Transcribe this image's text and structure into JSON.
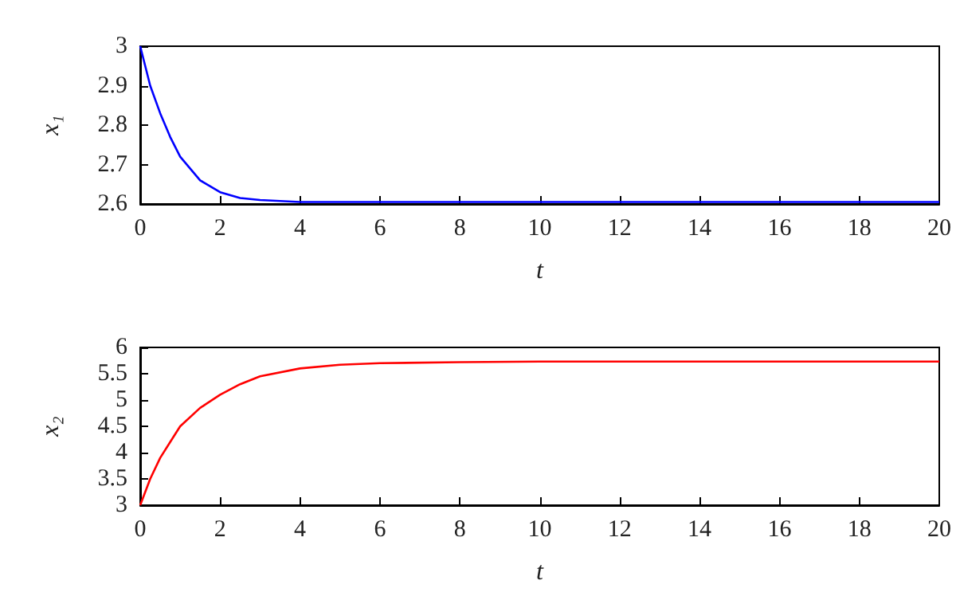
{
  "chart_data": [
    {
      "type": "line",
      "xlabel": "t",
      "ylabel": "x₁",
      "x": [
        0,
        0.25,
        0.5,
        0.75,
        1,
        1.5,
        2,
        2.5,
        3,
        4,
        5,
        6,
        8,
        10,
        12,
        14,
        16,
        18,
        20
      ],
      "series": [
        {
          "color": "#0000ff",
          "values": [
            3.0,
            2.9,
            2.83,
            2.77,
            2.72,
            2.66,
            2.63,
            2.615,
            2.61,
            2.605,
            2.605,
            2.605,
            2.605,
            2.605,
            2.605,
            2.605,
            2.605,
            2.605,
            2.605
          ]
        }
      ],
      "xlim": [
        0,
        20
      ],
      "xticks": [
        0,
        2,
        4,
        6,
        8,
        10,
        12,
        14,
        16,
        18,
        20
      ],
      "ylim": [
        2.6,
        3
      ],
      "yticks": [
        2.6,
        2.7,
        2.8,
        2.9,
        3
      ],
      "grid": false,
      "marker": "none",
      "line_style": "solid"
    },
    {
      "type": "line",
      "xlabel": "t",
      "ylabel": "x₂",
      "x": [
        0,
        0.25,
        0.5,
        0.75,
        1,
        1.5,
        2,
        2.5,
        3,
        4,
        5,
        6,
        8,
        10,
        12,
        14,
        16,
        18,
        20
      ],
      "series": [
        {
          "color": "#ff0000",
          "values": [
            3.0,
            3.5,
            3.9,
            4.2,
            4.5,
            4.85,
            5.1,
            5.3,
            5.45,
            5.6,
            5.67,
            5.7,
            5.72,
            5.73,
            5.73,
            5.73,
            5.73,
            5.73,
            5.73
          ]
        }
      ],
      "xlim": [
        0,
        20
      ],
      "xticks": [
        0,
        2,
        4,
        6,
        8,
        10,
        12,
        14,
        16,
        18,
        20
      ],
      "ylim": [
        3,
        6
      ],
      "yticks": [
        3,
        3.5,
        4,
        4.5,
        5,
        5.5,
        6
      ],
      "grid": false,
      "marker": "none",
      "line_style": "solid"
    }
  ]
}
